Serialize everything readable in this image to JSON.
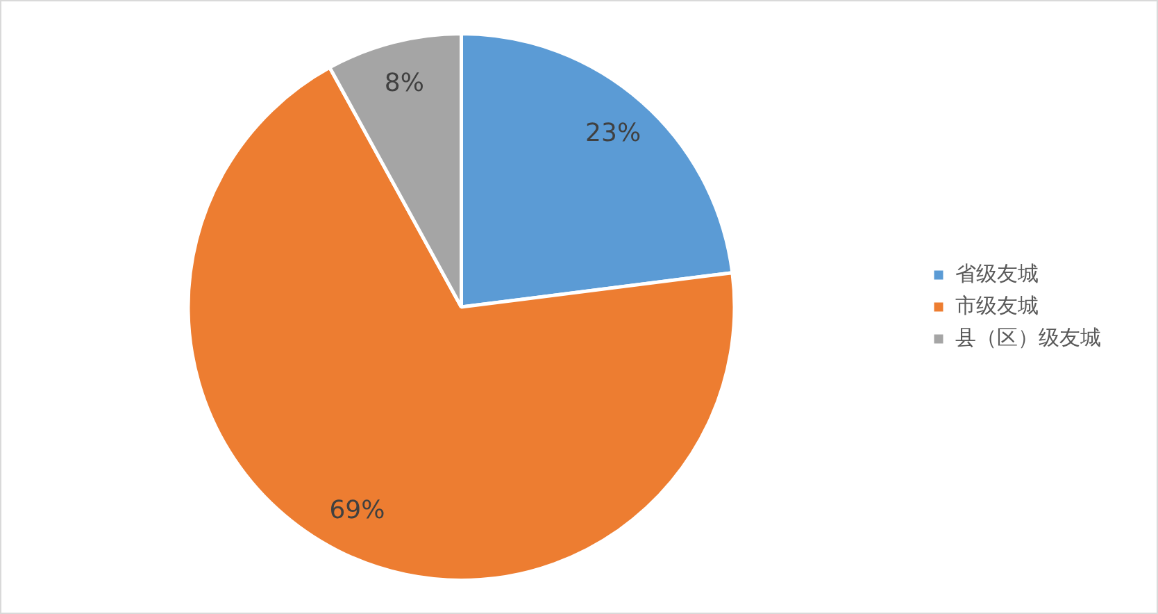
{
  "chart_data": {
    "type": "pie",
    "categories": [
      "省级友城",
      "市级友城",
      "县（区）级友城"
    ],
    "values": [
      23,
      69,
      8
    ],
    "colors": [
      "#5b9bd5",
      "#ed7d31",
      "#a5a5a5"
    ],
    "value_labels": [
      "23%",
      "69%",
      "8%"
    ],
    "legend": "right"
  }
}
